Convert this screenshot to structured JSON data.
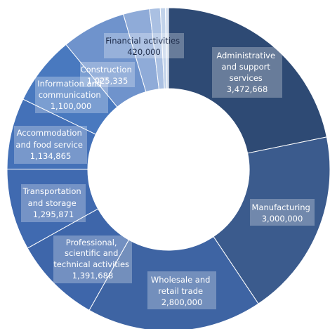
{
  "chart_data": {
    "type": "pie",
    "donut": true,
    "legend": "none",
    "slices": [
      {
        "label": "Administrative and support services",
        "value_label": "3,472,668",
        "value": 3472668,
        "color": "#2e4a74"
      },
      {
        "label": "Manufacturing",
        "value_label": "3,000,000",
        "value": 3000000,
        "color": "#3b5b8d"
      },
      {
        "label": "Wholesale and retail trade",
        "value_label": "2,800,000",
        "value": 2800000,
        "color": "#3e64a3"
      },
      {
        "label": "Professional, scientific and technical activities",
        "value_label": "1,391,688",
        "value": 1391688,
        "color": "#3e66aa"
      },
      {
        "label": "Transportation and storage",
        "value_label": "1,295,871",
        "value": 1295871,
        "color": "#406ab0"
      },
      {
        "label": "Accommodation and food service",
        "value_label": "1,134,865",
        "value": 1134865,
        "color": "#4471b8"
      },
      {
        "label": "Information and communication",
        "value_label": "1,100,000",
        "value": 1100000,
        "color": "#4979bf"
      },
      {
        "label": "Construction",
        "value_label": "1,025,335",
        "value": 1025335,
        "color": "#6f93cc"
      },
      {
        "label": "Financial activities",
        "value_label": "420,000",
        "value": 420000,
        "color": "#8fabd8"
      },
      {
        "label": "",
        "value_label": "",
        "value": 170000,
        "color": "#aac0e2"
      },
      {
        "label": "",
        "value_label": "",
        "value": 80000,
        "color": "#c2d3ea"
      },
      {
        "label": "",
        "value_label": "",
        "value": 50000,
        "color": "#d3dff0"
      }
    ]
  }
}
